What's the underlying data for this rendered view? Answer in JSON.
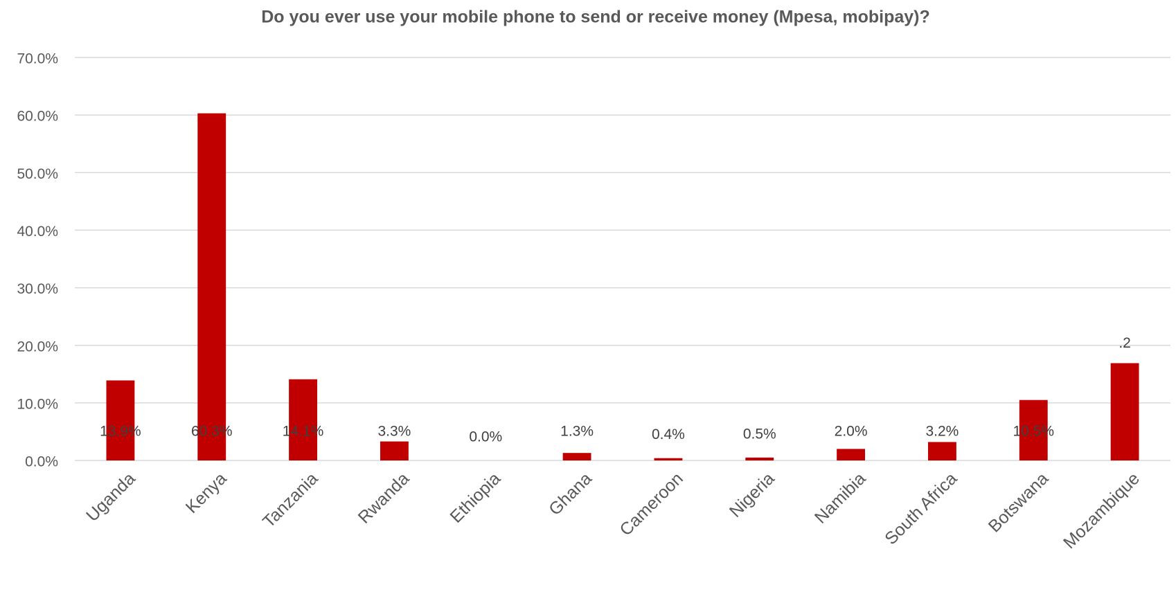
{
  "chart_data": {
    "type": "bar",
    "title": "Do you ever use your mobile phone to send or receive money (Mpesa, mobipay)?",
    "categories": [
      "Uganda",
      "Kenya",
      "Tanzania",
      "Rwanda",
      "Ethiopia",
      "Ghana",
      "Cameroon",
      "Nigeria",
      "Namibia",
      "South Africa",
      "Botswana",
      "Mozambique"
    ],
    "values": [
      13.9,
      60.3,
      14.1,
      3.3,
      0.0,
      1.3,
      0.4,
      0.5,
      2.0,
      3.2,
      10.5,
      16.9
    ],
    "value_labels": [
      "13.9%",
      "60.3%",
      "14.1%",
      "3.3%",
      "0.0%",
      "1.3%",
      "0.4%",
      "0.5%",
      "2.0%",
      "3.2%",
      "10.5%",
      null
    ],
    "annotations": [
      ".2"
    ],
    "color": "#c00000",
    "ylim": [
      0,
      70
    ],
    "yticks": [
      {
        "value": 0,
        "label": "0.0%"
      },
      {
        "value": 10,
        "label": "10.0%"
      },
      {
        "value": 20,
        "label": "20.0%"
      },
      {
        "value": 30,
        "label": "30.0%"
      },
      {
        "value": 40,
        "label": "40.0%"
      },
      {
        "value": 50,
        "label": "50.0%"
      },
      {
        "value": 60,
        "label": "60.0%"
      },
      {
        "value": 70,
        "label": "70.0%"
      }
    ],
    "grid": true
  }
}
